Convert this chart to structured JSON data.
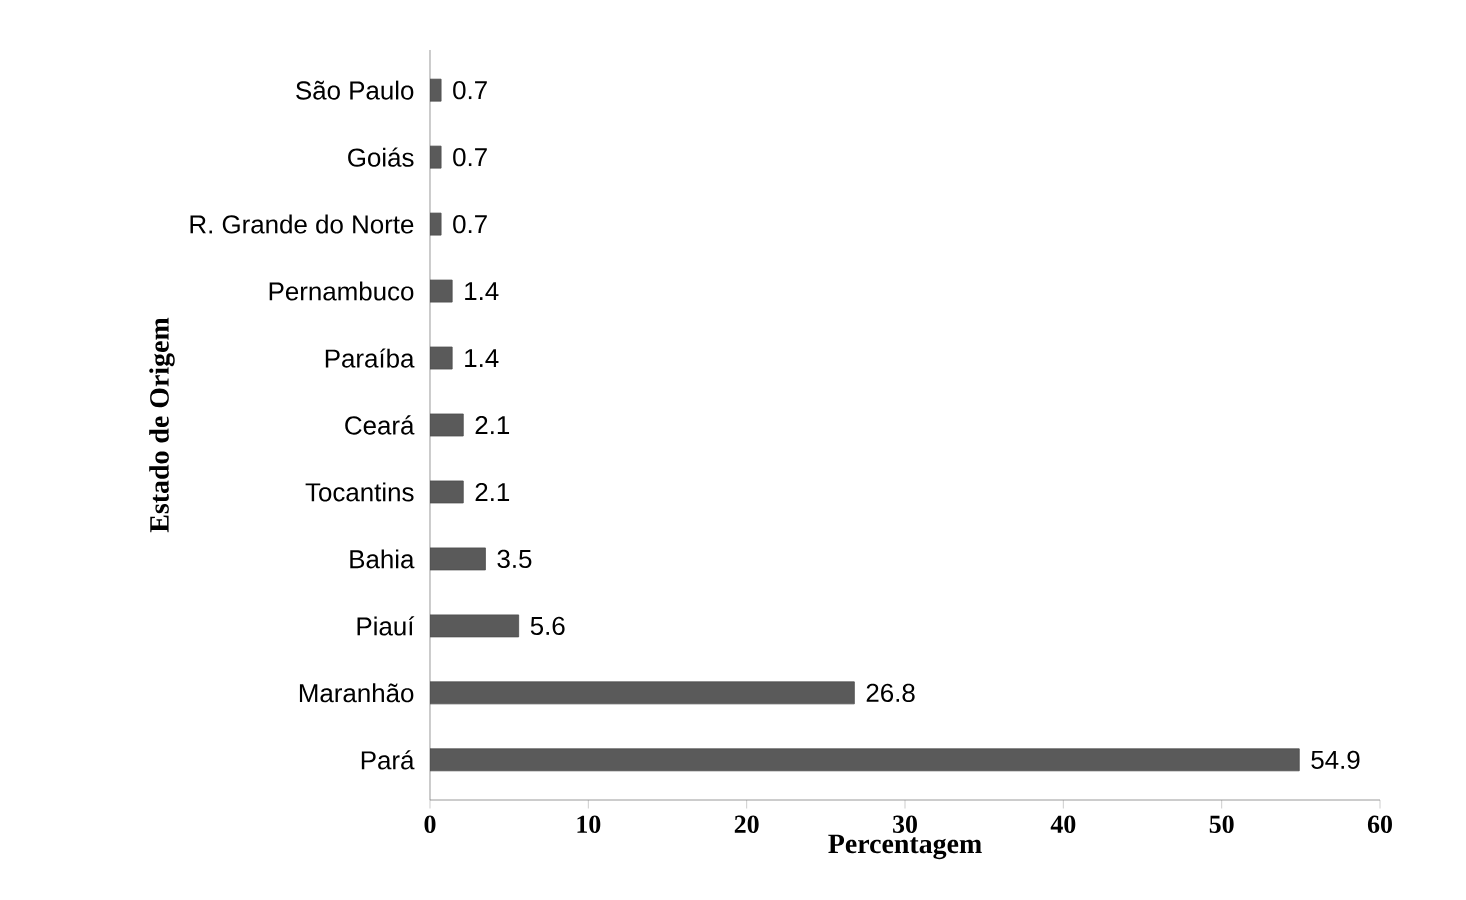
{
  "chart_data": {
    "type": "bar",
    "orientation": "horizontal",
    "xlabel": "Percentagem",
    "ylabel": "Estado de Origem",
    "categories": [
      "São Paulo",
      "Goiás",
      "R. Grande do Norte",
      "Pernambuco",
      "Paraíba",
      "Ceará",
      "Tocantins",
      "Bahia",
      "Piauí",
      "Maranhão",
      "Pará"
    ],
    "values": [
      0.7,
      0.7,
      0.7,
      1.4,
      1.4,
      2.1,
      2.1,
      3.5,
      5.6,
      26.8,
      54.9
    ],
    "color": "#5a5a5a",
    "xlim": [
      0,
      60
    ],
    "xticks": [
      0,
      10,
      20,
      30,
      40,
      50,
      60
    ],
    "grid": false,
    "data_labels": true
  }
}
